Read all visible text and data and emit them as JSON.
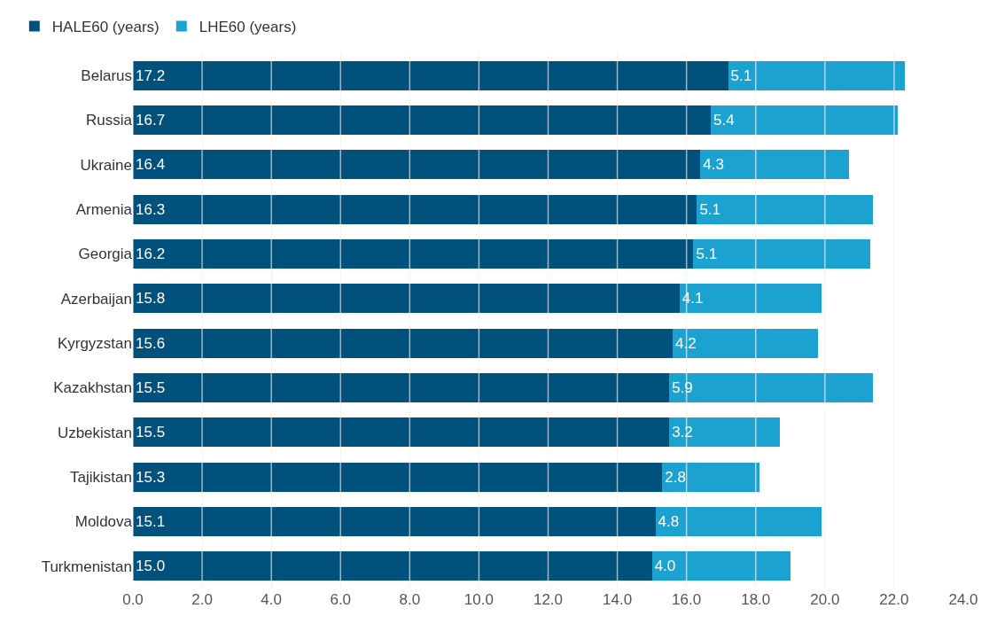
{
  "chart_data": {
    "type": "bar",
    "orientation": "horizontal",
    "stacked": true,
    "categories": [
      "Belarus",
      "Russia",
      "Ukraine",
      "Armenia",
      "Georgia",
      "Azerbaijan",
      "Kyrgyzstan",
      "Kazakhstan",
      "Uzbekistan",
      "Tajikistan",
      "Moldova",
      "Turkmenistan"
    ],
    "series": [
      {
        "name": "HALE60 (years)",
        "color": "#00527c",
        "values": [
          17.2,
          16.7,
          16.4,
          16.3,
          16.2,
          15.8,
          15.6,
          15.5,
          15.5,
          15.3,
          15.1,
          15.0
        ],
        "value_labels": [
          "17.2",
          "16.7",
          "16.4",
          "16.3",
          "16.2",
          "15.8",
          "15.6",
          "15.5",
          "15.5",
          "15.3",
          "15.1",
          "15.0"
        ]
      },
      {
        "name": "LHE60 (years)",
        "color": "#1ba2d0",
        "values": [
          5.1,
          5.4,
          4.3,
          5.1,
          5.1,
          4.1,
          4.2,
          5.9,
          3.2,
          2.8,
          4.8,
          4.0
        ],
        "value_labels": [
          "5.1",
          "5.4",
          "4.3",
          "5.1",
          "5.1",
          "4.1",
          "4.2",
          "5.9",
          "3.2",
          "2.8",
          "4.8",
          "4.0"
        ]
      }
    ],
    "xlim": [
      0,
      24
    ],
    "xticks": [
      {
        "value": 0,
        "label": "0.0"
      },
      {
        "value": 2,
        "label": "2.0"
      },
      {
        "value": 4,
        "label": "4.0"
      },
      {
        "value": 6,
        "label": "6.0"
      },
      {
        "value": 8,
        "label": "8.0"
      },
      {
        "value": 10,
        "label": "10.0"
      },
      {
        "value": 12,
        "label": "12.0"
      },
      {
        "value": 14,
        "label": "14.0"
      },
      {
        "value": 16,
        "label": "16.0"
      },
      {
        "value": 18,
        "label": "18.0"
      },
      {
        "value": 20,
        "label": "20.0"
      },
      {
        "value": 22,
        "label": "22.0"
      },
      {
        "value": 24,
        "label": "24.0"
      }
    ],
    "grid": "x",
    "legend": "top left"
  }
}
